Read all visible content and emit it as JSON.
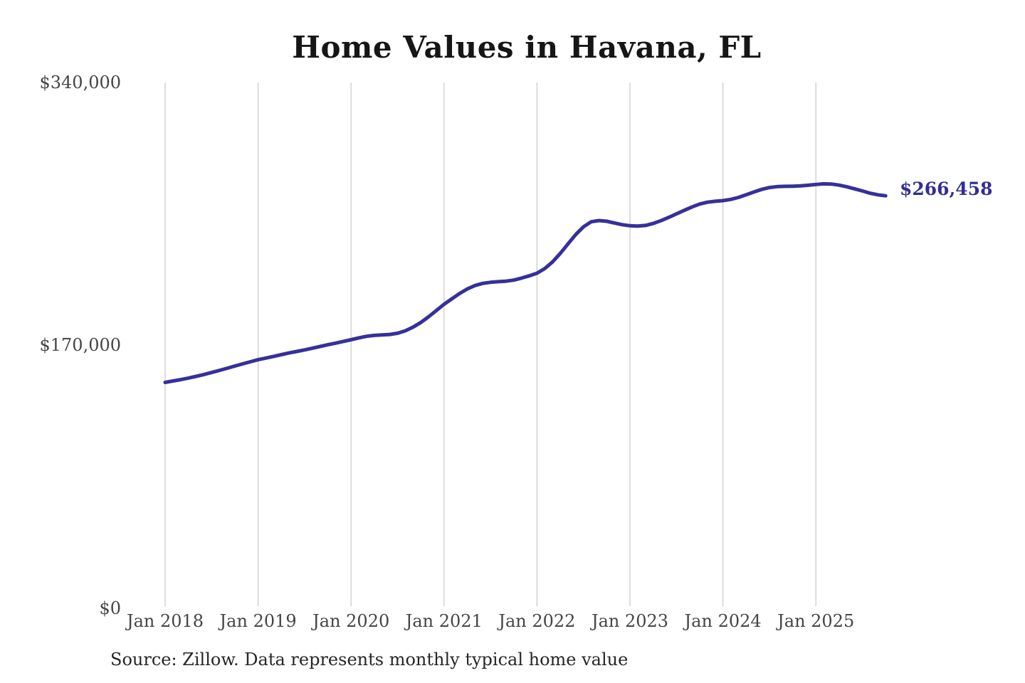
{
  "page": {
    "background": "#ffffff"
  },
  "chart": {
    "colors": {
      "line": "#36309a",
      "gridline": "#cccccc",
      "title": "#161616",
      "axis_label": "#454545",
      "end_label": "#332d96",
      "source": "#262626"
    },
    "source_note": "Source: Zillow. Data represents monthly typical home value"
  },
  "chart_data": {
    "type": "line",
    "title": "Home Values in Havana, FL",
    "xlabel": "",
    "ylabel": "",
    "ylim": [
      0,
      340000
    ],
    "grid": "vertical-only",
    "legend": "none",
    "y_tick_labels": [
      "$0",
      "$170,000",
      "$340,000"
    ],
    "x_tick_labels": [
      "Jan 2018",
      "Jan 2019",
      "Jan 2020",
      "Jan 2021",
      "Jan 2022",
      "Jan 2023",
      "Jan 2024",
      "Jan 2025"
    ],
    "final_value": 266458,
    "final_value_label": "$266,458",
    "x": [
      "2018-01",
      "2018-02",
      "2018-03",
      "2018-04",
      "2018-05",
      "2018-06",
      "2018-07",
      "2018-08",
      "2018-09",
      "2018-10",
      "2018-11",
      "2018-12",
      "2019-01",
      "2019-02",
      "2019-03",
      "2019-04",
      "2019-05",
      "2019-06",
      "2019-07",
      "2019-08",
      "2019-09",
      "2019-10",
      "2019-11",
      "2019-12",
      "2020-01",
      "2020-02",
      "2020-03",
      "2020-04",
      "2020-05",
      "2020-06",
      "2020-07",
      "2020-08",
      "2020-09",
      "2020-10",
      "2020-11",
      "2020-12",
      "2021-01",
      "2021-02",
      "2021-03",
      "2021-04",
      "2021-05",
      "2021-06",
      "2021-07",
      "2021-08",
      "2021-09",
      "2021-10",
      "2021-11",
      "2021-12",
      "2022-01",
      "2022-02",
      "2022-03",
      "2022-04",
      "2022-05",
      "2022-06",
      "2022-07",
      "2022-08",
      "2022-09",
      "2022-10",
      "2022-11",
      "2022-12",
      "2023-01",
      "2023-02",
      "2023-03",
      "2023-04",
      "2023-05",
      "2023-06",
      "2023-07",
      "2023-08",
      "2023-09",
      "2023-10",
      "2023-11",
      "2023-12",
      "2024-01",
      "2024-02",
      "2024-03",
      "2024-04",
      "2024-05",
      "2024-06",
      "2024-07",
      "2024-08",
      "2024-09",
      "2024-10",
      "2024-11",
      "2024-12",
      "2025-01",
      "2025-02",
      "2025-03",
      "2025-04",
      "2025-05",
      "2025-06",
      "2025-07",
      "2025-08",
      "2025-09",
      "2025-10"
    ],
    "values": [
      145300,
      146200,
      147100,
      148100,
      149200,
      150400,
      151700,
      153100,
      154500,
      155900,
      157300,
      158700,
      160000,
      161100,
      162200,
      163300,
      164400,
      165400,
      166400,
      167500,
      168600,
      169700,
      170800,
      171900,
      173000,
      174200,
      175200,
      175800,
      176100,
      176400,
      177200,
      178800,
      181200,
      184200,
      187900,
      191900,
      196000,
      199500,
      203000,
      206000,
      208200,
      209600,
      210300,
      210700,
      211000,
      211700,
      213000,
      214500,
      216200,
      219200,
      223500,
      229000,
      235200,
      241300,
      246300,
      249600,
      250400,
      249900,
      248800,
      247700,
      247000,
      246800,
      247200,
      248500,
      250300,
      252400,
      254700,
      257000,
      259200,
      261100,
      262300,
      262900,
      263300,
      264100,
      265400,
      267100,
      268900,
      270600,
      271800,
      272400,
      272600,
      272700,
      272900,
      273300,
      273800,
      274200,
      274100,
      273400,
      272300,
      271000,
      269600,
      268100,
      267100,
      266458
    ]
  }
}
